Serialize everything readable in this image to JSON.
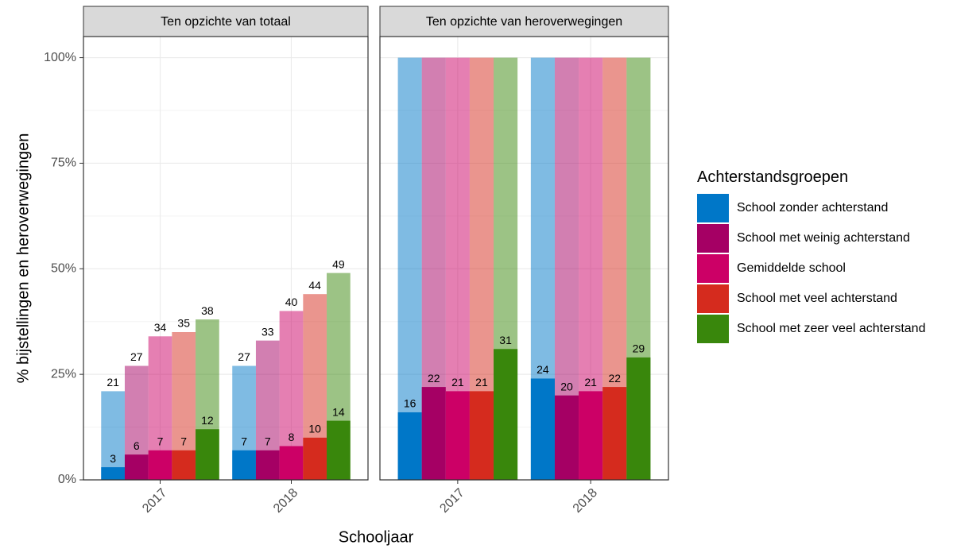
{
  "chart_data": [
    {
      "type": "bar",
      "title": "Ten opzichte van totaal",
      "xlabel": "Schooljaar",
      "ylabel": "% bijstellingen en heroverwegingen",
      "legend_title": "Achterstandsgroepen",
      "categories": [
        "2017",
        "2018"
      ],
      "series": [
        {
          "name": "School zonder achterstand",
          "color": "#0077c8",
          "values": [
            3,
            7
          ],
          "totals": [
            21,
            27
          ]
        },
        {
          "name": "School met weinig achterstand",
          "color": "#a50064",
          "values": [
            6,
            7
          ],
          "totals": [
            27,
            33
          ]
        },
        {
          "name": "Gemiddelde school",
          "color": "#cc0066",
          "values": [
            7,
            8
          ],
          "totals": [
            34,
            40
          ]
        },
        {
          "name": "School met veel achterstand",
          "color": "#d52b1e",
          "values": [
            7,
            10
          ],
          "totals": [
            35,
            44
          ]
        },
        {
          "name": "School met zeer veel achterstand",
          "color": "#39870c",
          "values": [
            12,
            14
          ],
          "totals": [
            38,
            49
          ]
        }
      ],
      "total_labels": true,
      "ylim": [
        0,
        105
      ],
      "yticks": [
        {
          "value": 0,
          "label": "0%"
        },
        {
          "value": 25,
          "label": "25%"
        },
        {
          "value": 50,
          "label": "50%"
        },
        {
          "value": 75,
          "label": "75%"
        },
        {
          "value": 100,
          "label": "100%"
        }
      ],
      "yminor": [
        12.5,
        37.5,
        62.5,
        87.5
      ],
      "grid": true
    },
    {
      "type": "bar",
      "title": "Ten opzichte van heroverwegingen",
      "categories": [
        "2017",
        "2018"
      ],
      "series": [
        {
          "color": "#0077c8",
          "values": [
            16,
            24
          ],
          "totals": [
            100,
            100
          ]
        },
        {
          "color": "#a50064",
          "values": [
            22,
            20
          ],
          "totals": [
            100,
            100
          ]
        },
        {
          "color": "#cc0066",
          "values": [
            21,
            21
          ],
          "totals": [
            100,
            100
          ]
        },
        {
          "color": "#d52b1e",
          "values": [
            21,
            22
          ],
          "totals": [
            100,
            100
          ]
        },
        {
          "color": "#39870c",
          "values": [
            31,
            29
          ],
          "totals": [
            100,
            100
          ]
        }
      ],
      "total_labels": false,
      "ylim": [
        0,
        105
      ],
      "yticks": [
        0,
        25,
        50,
        75,
        100
      ],
      "yminor": [
        12.5,
        37.5,
        62.5,
        87.5
      ],
      "grid": true
    }
  ]
}
